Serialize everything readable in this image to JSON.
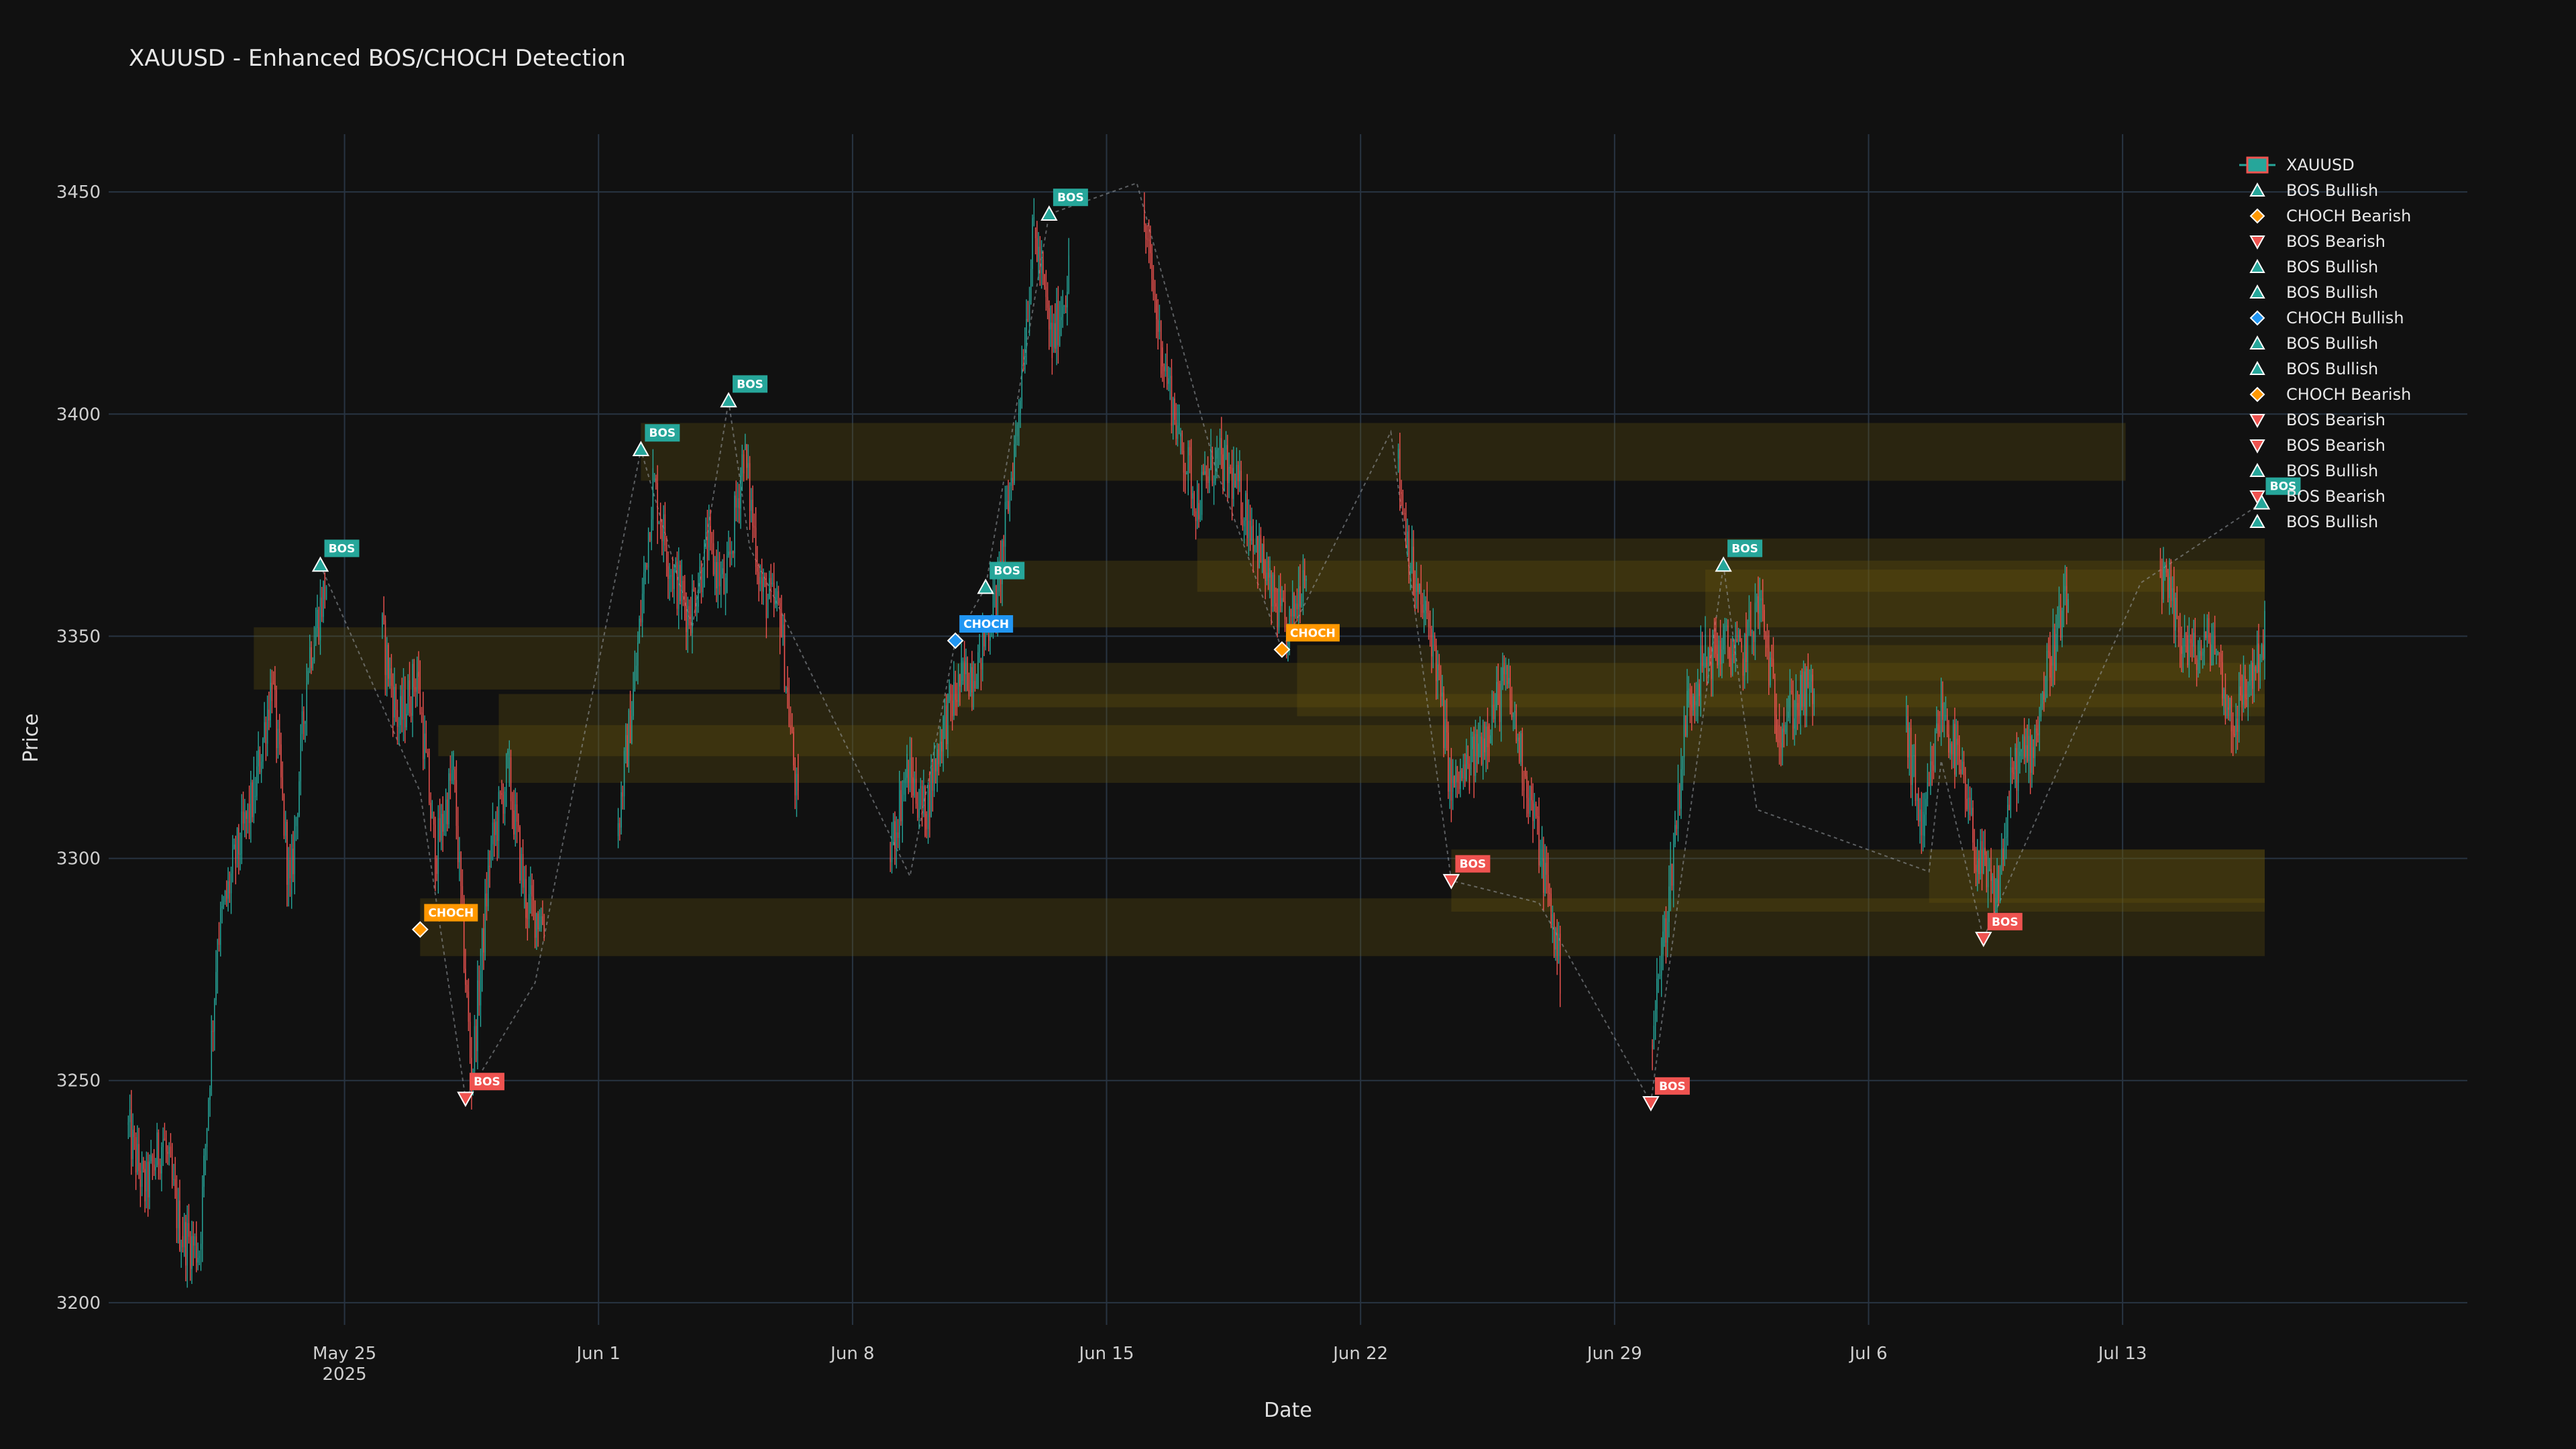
{
  "chart_data": {
    "type": "candlestick",
    "title": "XAUUSD - Enhanced BOS/CHOCH Detection",
    "xlabel": "Date",
    "ylabel": "Price",
    "x_range": [
      "2025-05-18T12:00",
      "2025-07-22T12:00"
    ],
    "ylim": [
      3195,
      3463
    ],
    "y_ticks": [
      3200,
      3250,
      3300,
      3350,
      3400,
      3450
    ],
    "x_ticks": [
      {
        "date": "2025-05-25",
        "label": "May 25",
        "sub": "2025"
      },
      {
        "date": "2025-06-01",
        "label": "Jun 1",
        "sub": ""
      },
      {
        "date": "2025-06-08",
        "label": "Jun 8",
        "sub": ""
      },
      {
        "date": "2025-06-15",
        "label": "Jun 15",
        "sub": ""
      },
      {
        "date": "2025-06-22",
        "label": "Jun 22",
        "sub": ""
      },
      {
        "date": "2025-06-29",
        "label": "Jun 29",
        "sub": ""
      },
      {
        "date": "2025-07-06",
        "label": "Jul 6",
        "sub": ""
      },
      {
        "date": "2025-07-13",
        "label": "Jul 13",
        "sub": ""
      }
    ],
    "grid": true,
    "legend_position": "top-right",
    "colors": {
      "background": "#111111",
      "grid": "#283442",
      "up": "#26a69a",
      "down": "#ef5350",
      "bos_bull": "#26a69a",
      "bos_bear": "#ef5350",
      "choch_bull": "#2196f3",
      "choch_bear": "#ff9800",
      "zone": "#6b5a0d",
      "swing_line": "#9aa0a6"
    },
    "price_path": [
      [
        "2025-05-19T00:00",
        3240
      ],
      [
        "2025-05-19T12:00",
        3225
      ],
      [
        "2025-05-20T00:00",
        3237
      ],
      [
        "2025-05-20T12:00",
        3215
      ],
      [
        "2025-05-21T00:00",
        3212
      ],
      [
        "2025-05-21T12:00",
        3282
      ],
      [
        "2025-05-22T00:00",
        3300
      ],
      [
        "2025-05-22T12:00",
        3314
      ],
      [
        "2025-05-23T00:00",
        3340
      ],
      [
        "2025-05-23T12:00",
        3292
      ],
      [
        "2025-05-24T00:00",
        3345
      ],
      [
        "2025-05-24T12:00",
        3362
      ],
      [
        "2025-05-26T00:00",
        3352
      ],
      [
        "2025-05-26T12:00",
        3330
      ],
      [
        "2025-05-27T00:00",
        3342
      ],
      [
        "2025-05-27T12:00",
        3300
      ],
      [
        "2025-05-28T00:00",
        3320
      ],
      [
        "2025-05-28T12:00",
        3250
      ],
      [
        "2025-05-29T00:00",
        3300
      ],
      [
        "2025-05-29T12:00",
        3320
      ],
      [
        "2025-05-30T00:00",
        3290
      ],
      [
        "2025-05-30T12:00",
        3286
      ],
      [
        "2025-06-01T12:00",
        3305
      ],
      [
        "2025-06-02T00:00",
        3340
      ],
      [
        "2025-06-02T12:00",
        3385
      ],
      [
        "2025-06-03T00:00",
        3365
      ],
      [
        "2025-06-03T12:00",
        3355
      ],
      [
        "2025-06-04T00:00",
        3370
      ],
      [
        "2025-06-04T12:00",
        3360
      ],
      [
        "2025-06-05T00:00",
        3392
      ],
      [
        "2025-06-05T12:00",
        3360
      ],
      [
        "2025-06-06T00:00",
        3355
      ],
      [
        "2025-06-06T12:00",
        3310
      ],
      [
        "2025-06-09T00:00",
        3300
      ],
      [
        "2025-06-09T12:00",
        3320
      ],
      [
        "2025-06-10T00:00",
        3310
      ],
      [
        "2025-06-10T12:00",
        3330
      ],
      [
        "2025-06-11T00:00",
        3340
      ],
      [
        "2025-06-11T12:00",
        3345
      ],
      [
        "2025-06-12T00:00",
        3360
      ],
      [
        "2025-06-12T12:00",
        3395
      ],
      [
        "2025-06-13T00:00",
        3442
      ],
      [
        "2025-06-13T12:00",
        3415
      ],
      [
        "2025-06-13T23:00",
        3432
      ],
      [
        "2025-06-16T00:00",
        3445
      ],
      [
        "2025-06-16T12:00",
        3415
      ],
      [
        "2025-06-17T00:00",
        3395
      ],
      [
        "2025-06-17T12:00",
        3380
      ],
      [
        "2025-06-18T00:00",
        3390
      ],
      [
        "2025-06-18T12:00",
        3385
      ],
      [
        "2025-06-19T00:00",
        3375
      ],
      [
        "2025-06-19T12:00",
        3360
      ],
      [
        "2025-06-20T00:00",
        3350
      ],
      [
        "2025-06-20T12:00",
        3368
      ],
      [
        "2025-06-23T00:00",
        3390
      ],
      [
        "2025-06-23T12:00",
        3360
      ],
      [
        "2025-06-24T00:00",
        3350
      ],
      [
        "2025-06-24T12:00",
        3315
      ],
      [
        "2025-06-25T00:00",
        3320
      ],
      [
        "2025-06-25T12:00",
        3330
      ],
      [
        "2025-06-26T00:00",
        3340
      ],
      [
        "2025-06-26T12:00",
        3320
      ],
      [
        "2025-06-27T00:00",
        3300
      ],
      [
        "2025-06-27T12:00",
        3275
      ],
      [
        "2025-06-30T00:00",
        3258
      ],
      [
        "2025-06-30T12:00",
        3292
      ],
      [
        "2025-07-01T00:00",
        3335
      ],
      [
        "2025-07-01T12:00",
        3345
      ],
      [
        "2025-07-02T00:00",
        3348
      ],
      [
        "2025-07-02T12:00",
        3345
      ],
      [
        "2025-07-03T00:00",
        3358
      ],
      [
        "2025-07-03T12:00",
        3330
      ],
      [
        "2025-07-04T00:00",
        3335
      ],
      [
        "2025-07-04T12:00",
        3338
      ],
      [
        "2025-07-07T00:00",
        3330
      ],
      [
        "2025-07-07T12:00",
        3305
      ],
      [
        "2025-07-08T00:00",
        3335
      ],
      [
        "2025-07-08T12:00",
        3320
      ],
      [
        "2025-07-09T00:00",
        3300
      ],
      [
        "2025-07-09T12:00",
        3290
      ],
      [
        "2025-07-10T00:00",
        3320
      ],
      [
        "2025-07-10T12:00",
        3325
      ],
      [
        "2025-07-11T00:00",
        3345
      ],
      [
        "2025-07-11T12:00",
        3358
      ],
      [
        "2025-07-14T00:00",
        3365
      ],
      [
        "2025-07-14T12:00",
        3352
      ],
      [
        "2025-07-15T00:00",
        3345
      ],
      [
        "2025-07-15T12:00",
        3350
      ],
      [
        "2025-07-16T00:00",
        3330
      ],
      [
        "2025-07-16T12:00",
        3340
      ],
      [
        "2025-07-16T22:00",
        3350
      ]
    ],
    "swing_line": [
      [
        "2025-05-24T08:00",
        3366
      ],
      [
        "2025-05-27T02:00",
        3315
      ],
      [
        "2025-05-28T08:00",
        3246
      ],
      [
        "2025-05-30T06:00",
        3272
      ],
      [
        "2025-06-02T04:00",
        3392
      ],
      [
        "2025-06-03T14:00",
        3352
      ],
      [
        "2025-06-04T14:00",
        3403
      ],
      [
        "2025-06-05T04:00",
        3370
      ],
      [
        "2025-06-09T14:00",
        3296
      ],
      [
        "2025-06-10T20:00",
        3349
      ],
      [
        "2025-06-11T16:00",
        3361
      ],
      [
        "2025-06-13T10:00",
        3445
      ],
      [
        "2025-06-15T20:00",
        3452
      ],
      [
        "2025-06-18T00:00",
        3388
      ],
      [
        "2025-06-19T20:00",
        3347
      ],
      [
        "2025-06-22T20:00",
        3396
      ],
      [
        "2025-06-24T12:00",
        3295
      ],
      [
        "2025-06-26T22:00",
        3290
      ],
      [
        "2025-06-30T00:00",
        3245
      ],
      [
        "2025-07-02T00:00",
        3366
      ],
      [
        "2025-07-02T22:00",
        3311
      ],
      [
        "2025-07-07T16:00",
        3297
      ],
      [
        "2025-07-08T00:00",
        3322
      ],
      [
        "2025-07-09T04:00",
        3282
      ],
      [
        "2025-07-13T12:00",
        3362
      ],
      [
        "2025-07-16T20:00",
        3380
      ]
    ],
    "zones": [
      {
        "start": "2025-06-02T04:00",
        "end": "2025-07-13T02:00",
        "top": 3398,
        "bottom": 3385
      },
      {
        "start": "2025-06-12T00:00",
        "end": "2025-07-16T22:00",
        "top": 3367,
        "bottom": 3352
      },
      {
        "start": "2025-06-17T12:00",
        "end": "2025-07-16T22:00",
        "top": 3372,
        "bottom": 3360
      },
      {
        "start": "2025-05-22T12:00",
        "end": "2025-06-06T00:00",
        "top": 3352,
        "bottom": 3338
      },
      {
        "start": "2025-06-10T20:00",
        "end": "2025-07-16T22:00",
        "top": 3344,
        "bottom": 3334
      },
      {
        "start": "2025-06-20T06:00",
        "end": "2025-07-16T22:00",
        "top": 3348,
        "bottom": 3332
      },
      {
        "start": "2025-07-01T12:00",
        "end": "2025-07-16T22:00",
        "top": 3365,
        "bottom": 3340
      },
      {
        "start": "2025-05-29T06:00",
        "end": "2025-07-16T22:00",
        "top": 3337,
        "bottom": 3317
      },
      {
        "start": "2025-05-27T14:00",
        "end": "2025-07-16T22:00",
        "top": 3330,
        "bottom": 3323
      },
      {
        "start": "2025-05-27T02:00",
        "end": "2025-07-16T22:00",
        "top": 3291,
        "bottom": 3278
      },
      {
        "start": "2025-06-24T12:00",
        "end": "2025-07-16T22:00",
        "top": 3302,
        "bottom": 3288
      },
      {
        "start": "2025-07-07T16:00",
        "end": "2025-07-16T22:00",
        "top": 3302,
        "bottom": 3290
      }
    ],
    "markers": [
      {
        "name": "BOS Bullish",
        "kind": "bos_bull",
        "label": "BOS",
        "x": "2025-05-24T08:00",
        "y": 3366
      },
      {
        "name": "CHOCH Bearish",
        "kind": "choch_bear",
        "label": "CHOCH",
        "x": "2025-05-27T02:00",
        "y": 3284
      },
      {
        "name": "BOS Bearish",
        "kind": "bos_bear",
        "label": "BOS",
        "x": "2025-05-28T08:00",
        "y": 3246
      },
      {
        "name": "BOS Bullish",
        "kind": "bos_bull",
        "label": "BOS",
        "x": "2025-06-02T04:00",
        "y": 3392
      },
      {
        "name": "BOS Bullish",
        "kind": "bos_bull",
        "label": "BOS",
        "x": "2025-06-04T14:00",
        "y": 3403
      },
      {
        "name": "CHOCH Bullish",
        "kind": "choch_bull",
        "label": "CHOCH",
        "x": "2025-06-10T20:00",
        "y": 3349
      },
      {
        "name": "BOS Bullish",
        "kind": "bos_bull",
        "label": "BOS",
        "x": "2025-06-11T16:00",
        "y": 3361
      },
      {
        "name": "BOS Bullish",
        "kind": "bos_bull",
        "label": "BOS",
        "x": "2025-06-13T10:00",
        "y": 3445
      },
      {
        "name": "CHOCH Bearish",
        "kind": "choch_bear",
        "label": "CHOCH",
        "x": "2025-06-19T20:00",
        "y": 3347
      },
      {
        "name": "BOS Bearish",
        "kind": "bos_bear",
        "label": "BOS",
        "x": "2025-06-24T12:00",
        "y": 3295
      },
      {
        "name": "BOS Bearish",
        "kind": "bos_bear",
        "label": "BOS",
        "x": "2025-06-30T00:00",
        "y": 3245
      },
      {
        "name": "BOS Bullish",
        "kind": "bos_bull",
        "label": "BOS",
        "x": "2025-07-02T00:00",
        "y": 3366
      },
      {
        "name": "BOS Bearish",
        "kind": "bos_bear",
        "label": "BOS",
        "x": "2025-07-09T04:00",
        "y": 3282
      },
      {
        "name": "BOS Bullish",
        "kind": "bos_bull",
        "label": "BOS",
        "x": "2025-07-16T20:00",
        "y": 3380
      }
    ],
    "legend": [
      {
        "name": "XAUUSD",
        "kind": "candle"
      },
      {
        "name": "BOS Bullish",
        "kind": "bos_bull"
      },
      {
        "name": "CHOCH Bearish",
        "kind": "choch_bear"
      },
      {
        "name": "BOS Bearish",
        "kind": "bos_bear"
      },
      {
        "name": "BOS Bullish",
        "kind": "bos_bull"
      },
      {
        "name": "BOS Bullish",
        "kind": "bos_bull"
      },
      {
        "name": "CHOCH Bullish",
        "kind": "choch_bull"
      },
      {
        "name": "BOS Bullish",
        "kind": "bos_bull"
      },
      {
        "name": "BOS Bullish",
        "kind": "bos_bull"
      },
      {
        "name": "CHOCH Bearish",
        "kind": "choch_bear"
      },
      {
        "name": "BOS Bearish",
        "kind": "bos_bear"
      },
      {
        "name": "BOS Bearish",
        "kind": "bos_bear"
      },
      {
        "name": "BOS Bullish",
        "kind": "bos_bull"
      },
      {
        "name": "BOS Bearish",
        "kind": "bos_bear"
      },
      {
        "name": "BOS Bullish",
        "kind": "bos_bull"
      }
    ]
  }
}
